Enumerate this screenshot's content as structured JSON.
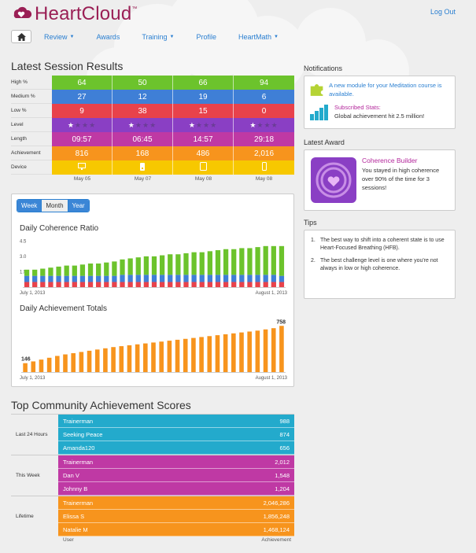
{
  "app": {
    "name": "HeartCloud",
    "trademark": "™",
    "logout": "Log Out"
  },
  "nav": {
    "items": [
      {
        "label": "Review",
        "dropdown": true
      },
      {
        "label": "Awards",
        "dropdown": false
      },
      {
        "label": "Training",
        "dropdown": true
      },
      {
        "label": "Profile",
        "dropdown": false
      },
      {
        "label": "HeartMath",
        "dropdown": true
      }
    ]
  },
  "colors": {
    "green": "#6cc32c",
    "blue": "#3f7fd6",
    "red": "#e8424b",
    "purple": "#8a3fc4",
    "magenta": "#bf39a4",
    "orange": "#f7941d",
    "yellow": "#f7c800",
    "cyan": "#23aacc",
    "brand": "#9a1f55"
  },
  "session": {
    "title": "Latest Session Results",
    "labels": {
      "high": "High %",
      "medium": "Medium %",
      "low": "Low %",
      "level": "Level",
      "length": "Length",
      "achievement": "Achievement",
      "device": "Device"
    },
    "columns": [
      {
        "high": "64",
        "medium": "27",
        "low": "9",
        "level": 1,
        "length": "09:57",
        "achievement": "816",
        "device": "monitor-icon",
        "date": "May 05"
      },
      {
        "high": "50",
        "medium": "12",
        "low": "38",
        "level": 1,
        "length": "06:45",
        "achievement": "168",
        "device": "usb-sensor-icon",
        "date": "May 07"
      },
      {
        "high": "66",
        "medium": "19",
        "low": "15",
        "level": 1,
        "length": "14:57",
        "achievement": "486",
        "device": "tablet-icon",
        "date": "May 08"
      },
      {
        "high": "94",
        "medium": "6",
        "low": "0",
        "level": 1,
        "length": "29:18",
        "achievement": "2,016",
        "device": "phone-icon",
        "date": "May 08"
      }
    ]
  },
  "charts": {
    "tabs": [
      "Week",
      "Month",
      "Year"
    ],
    "coherence_title": "Daily Coherence Ratio",
    "achievement_title": "Daily Achievement Totals"
  },
  "chart_data": [
    {
      "type": "bar",
      "title": "Daily Coherence Ratio",
      "stacked": true,
      "yticks": [
        "1.5",
        "3.0",
        "4.5"
      ],
      "ylim": [
        0,
        4.6
      ],
      "x_start_label": "July 1, 2013",
      "x_end_label": "August 1, 2013",
      "series": [
        {
          "name": "low",
          "color": "#e8424b",
          "values": [
            0.5,
            0.5,
            0.5,
            0.5,
            0.5,
            0.5,
            0.5,
            0.5,
            0.5,
            0.5,
            0.5,
            0.5,
            0.5,
            0.5,
            0.5,
            0.5,
            0.5,
            0.5,
            0.5,
            0.5,
            0.5,
            0.5,
            0.5,
            0.5,
            0.5,
            0.5,
            0.5,
            0.5,
            0.5,
            0.5,
            0.5,
            0.5,
            0.5
          ]
        },
        {
          "name": "medium",
          "color": "#3f7fd6",
          "values": [
            0.6,
            0.6,
            0.6,
            0.6,
            0.6,
            0.6,
            0.6,
            0.6,
            0.6,
            0.6,
            0.6,
            0.6,
            0.7,
            0.7,
            0.7,
            0.7,
            0.7,
            0.7,
            0.7,
            0.7,
            0.7,
            0.7,
            0.7,
            0.7,
            0.7,
            0.7,
            0.7,
            0.7,
            0.7,
            0.7,
            0.7,
            0.7,
            0.6
          ]
        },
        {
          "name": "high",
          "color": "#6cc32c",
          "values": [
            0.6,
            0.6,
            0.7,
            0.8,
            0.9,
            1.0,
            1.0,
            1.1,
            1.2,
            1.2,
            1.3,
            1.4,
            1.5,
            1.6,
            1.7,
            1.8,
            1.8,
            1.9,
            2.0,
            2.0,
            2.1,
            2.2,
            2.2,
            2.3,
            2.4,
            2.5,
            2.5,
            2.6,
            2.6,
            2.7,
            2.8,
            2.8,
            2.9
          ]
        }
      ]
    },
    {
      "type": "bar",
      "title": "Daily Achievement Totals",
      "values": [
        146,
        175,
        205,
        235,
        265,
        290,
        310,
        330,
        350,
        370,
        390,
        410,
        425,
        440,
        455,
        470,
        485,
        500,
        515,
        530,
        545,
        560,
        575,
        590,
        605,
        620,
        635,
        650,
        665,
        680,
        700,
        720,
        758
      ],
      "ylim": [
        0,
        800
      ],
      "first_label": "146",
      "last_label": "758",
      "x_start_label": "July 1, 2013",
      "x_end_label": "August 1, 2013"
    }
  ],
  "notifications": {
    "title": "Notifications",
    "items": [
      {
        "icon": "puzzle-icon",
        "text": "A new module for your Meditation course is available."
      },
      {
        "icon": "bar-chart-icon",
        "link": "Subscribed Stats:",
        "text": "Global achievement hit 2.5 million!"
      }
    ]
  },
  "award": {
    "title": "Latest Award",
    "name": "Coherence Builder",
    "text": "You stayed in high coherence over 90% of the time for 3 sessions!"
  },
  "tips": {
    "title": "Tips",
    "items": [
      {
        "num": "1.",
        "text": "The best way to shift into a coherent state is to use Heart-Focused Breathing (HFB)."
      },
      {
        "num": "2.",
        "text": "The best challenge level is one where you're not always in low or high coherence."
      }
    ]
  },
  "community": {
    "title": "Top Community Achievement Scores",
    "groups": [
      {
        "label": "Last 24 Hours",
        "color": "#23aacc",
        "rows": [
          {
            "user": "Trainerman",
            "score": "988"
          },
          {
            "user": "Seeking Peace",
            "score": "874"
          },
          {
            "user": "Amanda120",
            "score": "656"
          }
        ]
      },
      {
        "label": "This Week",
        "color": "#bf39a4",
        "rows": [
          {
            "user": "Trainerman",
            "score": "2,012"
          },
          {
            "user": "Dan V",
            "score": "1,548"
          },
          {
            "user": "Johnny B",
            "score": "1,204"
          }
        ]
      },
      {
        "label": "Lifetime",
        "color": "#f7941d",
        "rows": [
          {
            "user": "Trainerman",
            "score": "2,046,286"
          },
          {
            "user": "Elissa S",
            "score": "1,856,248"
          },
          {
            "user": "Natalie M",
            "score": "1,468,124"
          }
        ]
      }
    ],
    "footer_user": "User",
    "footer_score": "Achievement"
  }
}
